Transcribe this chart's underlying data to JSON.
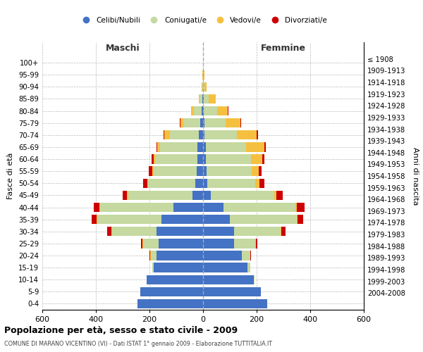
{
  "age_groups": [
    "0-4",
    "5-9",
    "10-14",
    "15-19",
    "20-24",
    "25-29",
    "30-34",
    "35-39",
    "40-44",
    "45-49",
    "50-54",
    "55-59",
    "60-64",
    "65-69",
    "70-74",
    "75-79",
    "80-84",
    "85-89",
    "90-94",
    "95-99",
    "100+"
  ],
  "birth_years": [
    "2004-2008",
    "1999-2003",
    "1994-1998",
    "1989-1993",
    "1984-1988",
    "1979-1983",
    "1974-1978",
    "1969-1973",
    "1964-1968",
    "1959-1963",
    "1954-1958",
    "1949-1953",
    "1944-1948",
    "1939-1943",
    "1934-1938",
    "1929-1933",
    "1924-1928",
    "1919-1923",
    "1914-1918",
    "1909-1913",
    "≤ 1908"
  ],
  "male_celibi": [
    245,
    235,
    210,
    185,
    175,
    165,
    175,
    155,
    110,
    40,
    30,
    25,
    20,
    20,
    15,
    10,
    5,
    2,
    1,
    0,
    0
  ],
  "male_coniugati": [
    0,
    0,
    0,
    5,
    20,
    60,
    165,
    240,
    275,
    240,
    175,
    160,
    160,
    140,
    110,
    65,
    30,
    10,
    2,
    1,
    0
  ],
  "male_vedovi": [
    0,
    0,
    0,
    0,
    2,
    2,
    2,
    3,
    3,
    3,
    3,
    5,
    5,
    10,
    20,
    10,
    10,
    5,
    2,
    1,
    0
  ],
  "male_divorziati": [
    0,
    0,
    0,
    0,
    2,
    5,
    15,
    18,
    20,
    18,
    15,
    12,
    8,
    5,
    3,
    3,
    0,
    0,
    0,
    0,
    0
  ],
  "female_celibi": [
    240,
    215,
    190,
    165,
    145,
    115,
    115,
    100,
    75,
    30,
    15,
    12,
    10,
    10,
    5,
    5,
    3,
    2,
    1,
    0,
    0
  ],
  "female_coniugati": [
    0,
    0,
    2,
    10,
    30,
    80,
    175,
    250,
    270,
    235,
    180,
    170,
    170,
    150,
    120,
    80,
    50,
    20,
    5,
    2,
    0
  ],
  "female_vedovi": [
    0,
    0,
    0,
    0,
    2,
    2,
    2,
    3,
    5,
    8,
    15,
    25,
    40,
    70,
    75,
    55,
    40,
    25,
    8,
    3,
    1
  ],
  "female_divorziati": [
    0,
    0,
    0,
    0,
    2,
    5,
    15,
    20,
    28,
    25,
    18,
    12,
    10,
    5,
    5,
    3,
    2,
    0,
    0,
    0,
    0
  ],
  "color_celibi": "#4472c4",
  "color_coniugati": "#c5d9a0",
  "color_vedovi": "#f5c040",
  "color_divorziati": "#cc0000",
  "xlim": 600,
  "title": "Popolazione per età, sesso e stato civile - 2009",
  "subtitle": "COMUNE DI MARANO VICENTINO (VI) - Dati ISTAT 1° gennaio 2009 - Elaborazione TUTTITALIA.IT",
  "ylabel_left": "Fasce di età",
  "ylabel_right": "Anni di nascita",
  "legend_celibi": "Celibi/Nubili",
  "legend_coniugati": "Coniugati/e",
  "legend_vedovi": "Vedovi/e",
  "legend_divorziati": "Divorziati/e"
}
